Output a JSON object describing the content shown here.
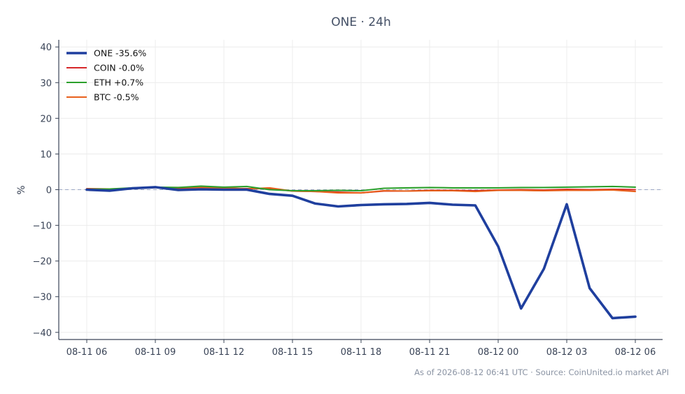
{
  "chart_data": {
    "type": "line",
    "title": "ONE · 24h",
    "xlabel": "",
    "ylabel": "%",
    "ylim": [
      -42,
      42
    ],
    "yticks": [
      -40,
      -30,
      -20,
      -10,
      0,
      10,
      20,
      30,
      40
    ],
    "ytick_labels": [
      "−40",
      "−30",
      "−20",
      "−10",
      "0",
      "10",
      "20",
      "30",
      "40"
    ],
    "x": [
      "08-11 06",
      "08-11 07",
      "08-11 08",
      "08-11 09",
      "08-11 10",
      "08-11 11",
      "08-11 12",
      "08-11 13",
      "08-11 14",
      "08-11 15",
      "08-11 16",
      "08-11 17",
      "08-11 18",
      "08-11 19",
      "08-11 20",
      "08-11 21",
      "08-11 22",
      "08-11 23",
      "08-12 00",
      "08-12 01",
      "08-12 02",
      "08-12 03",
      "08-12 04",
      "08-12 05",
      "08-12 06"
    ],
    "xtick_labels": [
      "08-11 06",
      "08-11 09",
      "08-11 12",
      "08-11 15",
      "08-11 18",
      "08-11 21",
      "08-12 00",
      "08-12 03",
      "08-12 06"
    ],
    "grid": true,
    "legend_position": "top-left",
    "zero_line": true,
    "series": [
      {
        "name": "ONE -35.6%",
        "color": "#1f3f9e",
        "width": "bold",
        "values": [
          0.0,
          -0.3,
          0.4,
          0.7,
          -0.1,
          0.1,
          0.0,
          0.0,
          -1.2,
          -1.7,
          -3.9,
          -4.7,
          -4.3,
          -4.1,
          -4.0,
          -3.7,
          -4.2,
          -4.4,
          -15.9,
          -33.3,
          -22.2,
          -4.1,
          -27.6,
          -36.0,
          -35.6
        ]
      },
      {
        "name": "COIN -0.0%",
        "color": "#d62728",
        "width": "normal",
        "values": [
          0.2,
          0.1,
          0.4,
          0.6,
          0.4,
          0.5,
          0.4,
          0.3,
          0.3,
          -0.4,
          -0.5,
          -0.7,
          -0.9,
          -0.4,
          -0.4,
          -0.2,
          -0.2,
          -0.3,
          -0.1,
          0.0,
          -0.1,
          0.1,
          0.0,
          0.1,
          0.0
        ]
      },
      {
        "name": "ETH +0.7%",
        "color": "#2ca02c",
        "width": "normal",
        "values": [
          0.1,
          0.2,
          0.5,
          0.7,
          0.6,
          1.0,
          0.7,
          0.9,
          0.0,
          -0.3,
          -0.3,
          -0.2,
          -0.3,
          0.4,
          0.5,
          0.6,
          0.5,
          0.5,
          0.5,
          0.6,
          0.6,
          0.7,
          0.8,
          0.9,
          0.7
        ]
      },
      {
        "name": "BTC -0.5%",
        "color": "#e8601c",
        "width": "normal",
        "values": [
          0.3,
          0.2,
          0.3,
          0.6,
          0.6,
          0.6,
          0.5,
          0.2,
          0.5,
          -0.4,
          -0.5,
          -0.9,
          -0.9,
          -0.3,
          -0.4,
          -0.3,
          -0.3,
          -0.5,
          -0.2,
          -0.2,
          -0.3,
          -0.2,
          -0.2,
          -0.1,
          -0.5
        ]
      }
    ]
  },
  "footer": "As of 2026-08-12 06:41 UTC · Source: CoinUnited.io market API"
}
